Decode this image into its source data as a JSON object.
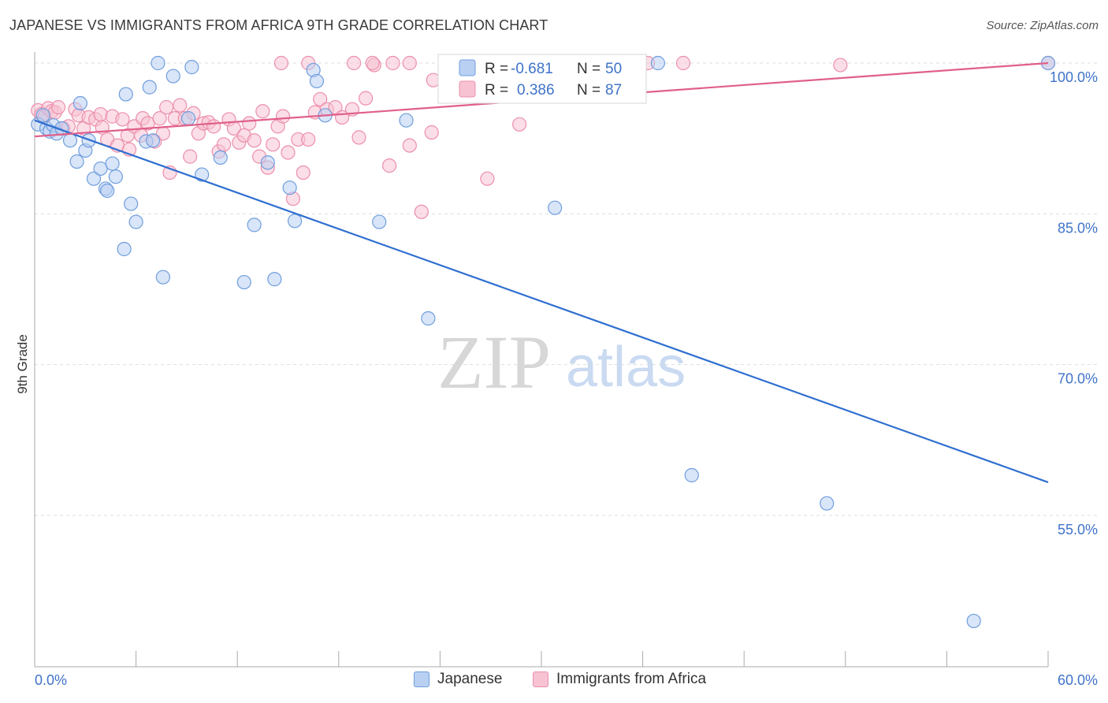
{
  "header": {
    "title": "JAPANESE VS IMMIGRANTS FROM AFRICA 9TH GRADE CORRELATION CHART",
    "source": "Source: ZipAtlas.com"
  },
  "watermark": {
    "zip": "ZIP",
    "atlas": "atlas"
  },
  "colors": {
    "blue_fill": "#b9d0f2",
    "blue_stroke": "#6f9ede",
    "blue_line": "#2f6fd0",
    "pink_fill": "#f7c3d3",
    "pink_stroke": "#ec8fab",
    "pink_line": "#e0608a",
    "tick_text": "#3f73c9",
    "grid": "#dddddd"
  },
  "legend_box": {
    "rows": [
      {
        "r_label": "R =",
        "r_value": "-0.681",
        "n_label": "N =",
        "n_value": "50"
      },
      {
        "r_label": "R =",
        "r_value": " 0.386",
        "n_label": "N =",
        "n_value": "87"
      }
    ]
  },
  "bottom_legend": {
    "japanese": "Japanese",
    "africa": "Immigrants from Africa"
  },
  "chart_data": {
    "type": "scatter",
    "title": "JAPANESE VS IMMIGRANTS FROM AFRICA 9TH GRADE CORRELATION CHART",
    "xlabel": "",
    "ylabel": "9th Grade",
    "xlim": [
      0,
      60
    ],
    "ylim": [
      40.5,
      101
    ],
    "x_tick_labels": [
      "0.0%",
      "60.0%"
    ],
    "y_ticks": [
      {
        "value": 100,
        "label": "100.0%"
      },
      {
        "value": 85,
        "label": "85.0%"
      },
      {
        "value": 70,
        "label": "70.0%"
      },
      {
        "value": 55,
        "label": "55.0%"
      }
    ],
    "series": [
      {
        "name": "Japanese",
        "R": -0.681,
        "N": 50,
        "trend": {
          "x0": 0,
          "y0": 94.3,
          "x1": 60,
          "y1": 58.3
        },
        "points": [
          [
            0.2,
            93.9
          ],
          [
            0.5,
            94.8
          ],
          [
            0.7,
            93.5
          ],
          [
            0.9,
            93.2
          ],
          [
            1.1,
            93.8
          ],
          [
            1.3,
            93.0
          ],
          [
            1.6,
            93.5
          ],
          [
            2.1,
            92.3
          ],
          [
            2.5,
            90.2
          ],
          [
            2.7,
            96.0
          ],
          [
            3.0,
            91.3
          ],
          [
            3.2,
            92.3
          ],
          [
            3.5,
            88.5
          ],
          [
            3.9,
            89.5
          ],
          [
            4.2,
            87.5
          ],
          [
            4.3,
            87.3
          ],
          [
            4.6,
            90.0
          ],
          [
            4.8,
            88.7
          ],
          [
            5.3,
            81.5
          ],
          [
            5.4,
            96.9
          ],
          [
            5.7,
            86.0
          ],
          [
            6.0,
            84.2
          ],
          [
            6.6,
            92.2
          ],
          [
            6.8,
            97.6
          ],
          [
            7.0,
            92.3
          ],
          [
            7.3,
            100.0
          ],
          [
            7.6,
            78.7
          ],
          [
            8.2,
            98.7
          ],
          [
            9.1,
            94.5
          ],
          [
            9.3,
            99.6
          ],
          [
            9.9,
            88.9
          ],
          [
            11.0,
            90.6
          ],
          [
            12.4,
            78.2
          ],
          [
            13.0,
            83.9
          ],
          [
            13.8,
            90.1
          ],
          [
            14.2,
            78.5
          ],
          [
            15.1,
            87.6
          ],
          [
            15.4,
            84.3
          ],
          [
            16.5,
            99.3
          ],
          [
            16.7,
            98.2
          ],
          [
            17.2,
            94.8
          ],
          [
            20.4,
            84.2
          ],
          [
            22.0,
            94.3
          ],
          [
            23.3,
            74.6
          ],
          [
            30.8,
            85.6
          ],
          [
            36.9,
            100.0
          ],
          [
            38.9,
            59.0
          ],
          [
            46.9,
            56.2
          ],
          [
            55.6,
            44.5
          ],
          [
            60.0,
            100.0
          ]
        ]
      },
      {
        "name": "Immigrants from Africa",
        "R": 0.386,
        "N": 87,
        "trend": {
          "x0": 0,
          "y0": 92.7,
          "x1": 60,
          "y1": 100.0
        },
        "points": [
          [
            0.2,
            95.3
          ],
          [
            0.4,
            94.9
          ],
          [
            0.6,
            94.7
          ],
          [
            0.8,
            95.5
          ],
          [
            1.0,
            95.2
          ],
          [
            1.2,
            95.1
          ],
          [
            1.4,
            95.6
          ],
          [
            1.7,
            93.5
          ],
          [
            2.0,
            93.7
          ],
          [
            2.4,
            95.4
          ],
          [
            2.6,
            94.8
          ],
          [
            2.9,
            93.5
          ],
          [
            3.2,
            94.6
          ],
          [
            3.6,
            94.4
          ],
          [
            3.9,
            94.9
          ],
          [
            4.0,
            93.6
          ],
          [
            4.3,
            92.4
          ],
          [
            4.6,
            94.7
          ],
          [
            4.9,
            91.8
          ],
          [
            5.2,
            94.4
          ],
          [
            5.5,
            92.8
          ],
          [
            5.6,
            91.4
          ],
          [
            5.9,
            93.7
          ],
          [
            6.3,
            92.8
          ],
          [
            6.4,
            94.5
          ],
          [
            6.7,
            94.0
          ],
          [
            7.1,
            92.2
          ],
          [
            7.4,
            94.5
          ],
          [
            7.6,
            93.0
          ],
          [
            7.8,
            95.6
          ],
          [
            8.0,
            89.1
          ],
          [
            8.3,
            94.5
          ],
          [
            8.6,
            95.8
          ],
          [
            8.9,
            94.5
          ],
          [
            9.2,
            90.7
          ],
          [
            9.4,
            95.0
          ],
          [
            9.7,
            93.0
          ],
          [
            10.0,
            94.0
          ],
          [
            10.3,
            94.1
          ],
          [
            10.6,
            93.7
          ],
          [
            10.9,
            91.2
          ],
          [
            11.2,
            91.9
          ],
          [
            11.5,
            94.4
          ],
          [
            11.8,
            93.5
          ],
          [
            12.1,
            92.1
          ],
          [
            12.4,
            92.8
          ],
          [
            12.7,
            94.0
          ],
          [
            13.0,
            92.3
          ],
          [
            13.3,
            90.7
          ],
          [
            13.5,
            95.2
          ],
          [
            13.8,
            89.6
          ],
          [
            14.1,
            91.9
          ],
          [
            14.4,
            93.7
          ],
          [
            14.7,
            94.7
          ],
          [
            15.0,
            91.1
          ],
          [
            15.3,
            86.5
          ],
          [
            15.6,
            92.4
          ],
          [
            15.9,
            89.1
          ],
          [
            16.2,
            92.4
          ],
          [
            16.6,
            95.1
          ],
          [
            16.9,
            96.4
          ],
          [
            17.3,
            95.4
          ],
          [
            17.8,
            95.6
          ],
          [
            18.2,
            94.6
          ],
          [
            18.8,
            95.4
          ],
          [
            19.2,
            92.6
          ],
          [
            19.6,
            96.5
          ],
          [
            20.1,
            99.8
          ],
          [
            21.0,
            89.8
          ],
          [
            22.2,
            91.8
          ],
          [
            22.9,
            85.2
          ],
          [
            23.5,
            93.1
          ],
          [
            26.8,
            88.5
          ],
          [
            28.7,
            93.9
          ],
          [
            35.2,
            99.8
          ],
          [
            38.4,
            100.0
          ],
          [
            47.7,
            99.8
          ],
          [
            60.0,
            100.0
          ],
          [
            14.6,
            100.0
          ],
          [
            16.2,
            100.0
          ],
          [
            18.9,
            100.0
          ],
          [
            20.0,
            100.0
          ],
          [
            21.2,
            100.0
          ],
          [
            22.2,
            100.0
          ],
          [
            23.6,
            98.3
          ],
          [
            25.0,
            100.0
          ],
          [
            36.3,
            100.0
          ]
        ]
      }
    ]
  }
}
